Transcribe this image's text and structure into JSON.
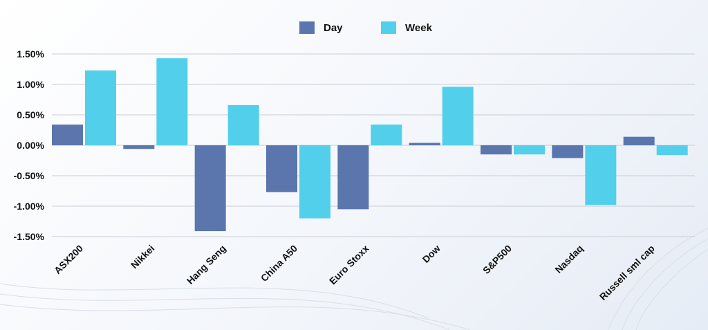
{
  "chart_data": {
    "type": "bar",
    "title": "",
    "xlabel": "",
    "ylabel": "",
    "categories": [
      "ASX200",
      "Nikkei",
      "Hang Seng",
      "China A50",
      "Euro Stoxx",
      "Dow",
      "S&P500",
      "Nasdaq",
      "Russell sml cap"
    ],
    "series": [
      {
        "name": "Day",
        "color": "#5b76ad",
        "values": [
          0.34,
          -0.06,
          -1.41,
          -0.77,
          -1.05,
          0.04,
          -0.15,
          -0.21,
          0.14
        ]
      },
      {
        "name": "Week",
        "color": "#52d0eb",
        "values": [
          1.23,
          1.43,
          0.66,
          -1.2,
          0.34,
          0.96,
          -0.15,
          -0.98,
          -0.16
        ]
      }
    ],
    "ylim": [
      -1.5,
      1.5
    ],
    "yticks": [
      "1.50%",
      "1.00%",
      "0.50%",
      "0.00%",
      "-0.50%",
      "-1.00%",
      "-1.50%"
    ],
    "ytick_values": [
      1.5,
      1.0,
      0.5,
      0.0,
      -0.5,
      -1.0,
      -1.5
    ],
    "grid": true,
    "legend_position": "top-center"
  }
}
